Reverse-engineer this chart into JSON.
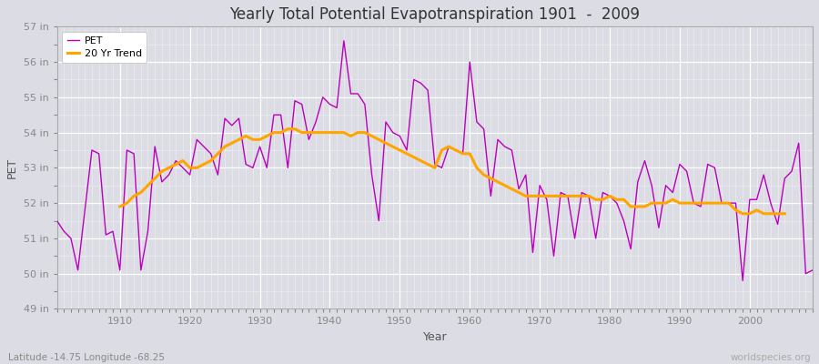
{
  "title": "Yearly Total Potential Evapotranspiration 1901  -  2009",
  "xlabel": "Year",
  "ylabel": "PET",
  "subtitle": "Latitude -14.75 Longitude -68.25",
  "watermark": "worldspecies.org",
  "background_color": "#dcdce4",
  "plot_bg_color": "#dcdce4",
  "pet_color": "#bb00bb",
  "trend_color": "#ffa500",
  "ylim": [
    49,
    57
  ],
  "ytick_labels": [
    "49 in",
    "50 in",
    "51 in",
    "52 in",
    "53 in",
    "54 in",
    "55 in",
    "56 in",
    "57 in"
  ],
  "ytick_values": [
    49,
    50,
    51,
    52,
    53,
    54,
    55,
    56,
    57
  ],
  "years": [
    1901,
    1902,
    1903,
    1904,
    1905,
    1906,
    1907,
    1908,
    1909,
    1910,
    1911,
    1912,
    1913,
    1914,
    1915,
    1916,
    1917,
    1918,
    1919,
    1920,
    1921,
    1922,
    1923,
    1924,
    1925,
    1926,
    1927,
    1928,
    1929,
    1930,
    1931,
    1932,
    1933,
    1934,
    1935,
    1936,
    1937,
    1938,
    1939,
    1940,
    1941,
    1942,
    1943,
    1944,
    1945,
    1946,
    1947,
    1948,
    1949,
    1950,
    1951,
    1952,
    1953,
    1954,
    1955,
    1956,
    1957,
    1958,
    1959,
    1960,
    1961,
    1962,
    1963,
    1964,
    1965,
    1966,
    1967,
    1968,
    1969,
    1970,
    1971,
    1972,
    1973,
    1974,
    1975,
    1976,
    1977,
    1978,
    1979,
    1980,
    1981,
    1982,
    1983,
    1984,
    1985,
    1986,
    1987,
    1988,
    1989,
    1990,
    1991,
    1992,
    1993,
    1994,
    1995,
    1996,
    1997,
    1998,
    1999,
    2000,
    2001,
    2002,
    2003,
    2004,
    2005,
    2006,
    2007,
    2008,
    2009
  ],
  "pet_values": [
    51.5,
    51.2,
    51.0,
    50.1,
    51.8,
    53.5,
    53.4,
    51.1,
    51.2,
    50.1,
    53.5,
    53.4,
    50.1,
    51.2,
    53.6,
    52.6,
    52.8,
    53.2,
    53.0,
    52.8,
    53.8,
    53.6,
    53.4,
    52.8,
    54.4,
    54.2,
    54.4,
    53.1,
    53.0,
    53.6,
    53.0,
    54.5,
    54.5,
    53.0,
    54.9,
    54.8,
    53.8,
    54.3,
    55.0,
    54.8,
    54.7,
    56.6,
    55.1,
    55.1,
    54.8,
    52.8,
    51.5,
    54.3,
    54.0,
    53.9,
    53.5,
    55.5,
    55.4,
    55.2,
    53.1,
    53.0,
    53.6,
    53.5,
    53.4,
    56.0,
    54.3,
    54.1,
    52.2,
    53.8,
    53.6,
    53.5,
    52.4,
    52.8,
    50.6,
    52.5,
    52.1,
    50.5,
    52.3,
    52.2,
    51.0,
    52.3,
    52.2,
    51.0,
    52.3,
    52.2,
    52.0,
    51.5,
    50.7,
    52.6,
    53.2,
    52.5,
    51.3,
    52.5,
    52.3,
    53.1,
    52.9,
    52.0,
    51.9,
    53.1,
    53.0,
    52.0,
    52.0,
    52.0,
    49.8,
    52.1,
    52.1,
    52.8,
    52.0,
    51.4,
    52.7,
    52.9,
    53.7,
    50.0,
    50.1
  ],
  "trend_years": [
    1910,
    1911,
    1912,
    1913,
    1914,
    1915,
    1916,
    1917,
    1918,
    1919,
    1920,
    1921,
    1922,
    1923,
    1924,
    1925,
    1926,
    1927,
    1928,
    1929,
    1930,
    1931,
    1932,
    1933,
    1934,
    1935,
    1936,
    1937,
    1938,
    1939,
    1940,
    1941,
    1942,
    1943,
    1944,
    1945,
    1946,
    1947,
    1948,
    1949,
    1950,
    1951,
    1952,
    1953,
    1954,
    1955,
    1956,
    1957,
    1958,
    1959,
    1960,
    1961,
    1962,
    1963,
    1964,
    1965,
    1966,
    1967,
    1968,
    1969,
    1970,
    1971,
    1972,
    1973,
    1974,
    1975,
    1976,
    1977,
    1978,
    1979,
    1980,
    1981,
    1982,
    1983,
    1984,
    1985,
    1986,
    1987,
    1988,
    1989,
    1990,
    1991,
    1992,
    1993,
    1994,
    1995,
    1996,
    1997,
    1998,
    1999,
    2000,
    2001,
    2002,
    2003,
    2004,
    2005
  ],
  "trend_values": [
    51.9,
    52.0,
    52.2,
    52.3,
    52.5,
    52.7,
    52.9,
    53.0,
    53.1,
    53.2,
    53.0,
    53.0,
    53.1,
    53.2,
    53.4,
    53.6,
    53.7,
    53.8,
    53.9,
    53.8,
    53.8,
    53.9,
    54.0,
    54.0,
    54.1,
    54.1,
    54.0,
    54.0,
    54.0,
    54.0,
    54.0,
    54.0,
    54.0,
    53.9,
    54.0,
    54.0,
    53.9,
    53.8,
    53.7,
    53.6,
    53.5,
    53.4,
    53.3,
    53.2,
    53.1,
    53.0,
    53.5,
    53.6,
    53.5,
    53.4,
    53.4,
    53.0,
    52.8,
    52.7,
    52.6,
    52.5,
    52.4,
    52.3,
    52.2,
    52.2,
    52.2,
    52.2,
    52.2,
    52.2,
    52.2,
    52.2,
    52.2,
    52.2,
    52.1,
    52.1,
    52.2,
    52.1,
    52.1,
    51.9,
    51.9,
    51.9,
    52.0,
    52.0,
    52.0,
    52.1,
    52.0,
    52.0,
    52.0,
    52.0,
    52.0,
    52.0,
    52.0,
    52.0,
    51.8,
    51.7,
    51.7,
    51.8,
    51.7,
    51.7,
    51.7,
    51.7
  ]
}
